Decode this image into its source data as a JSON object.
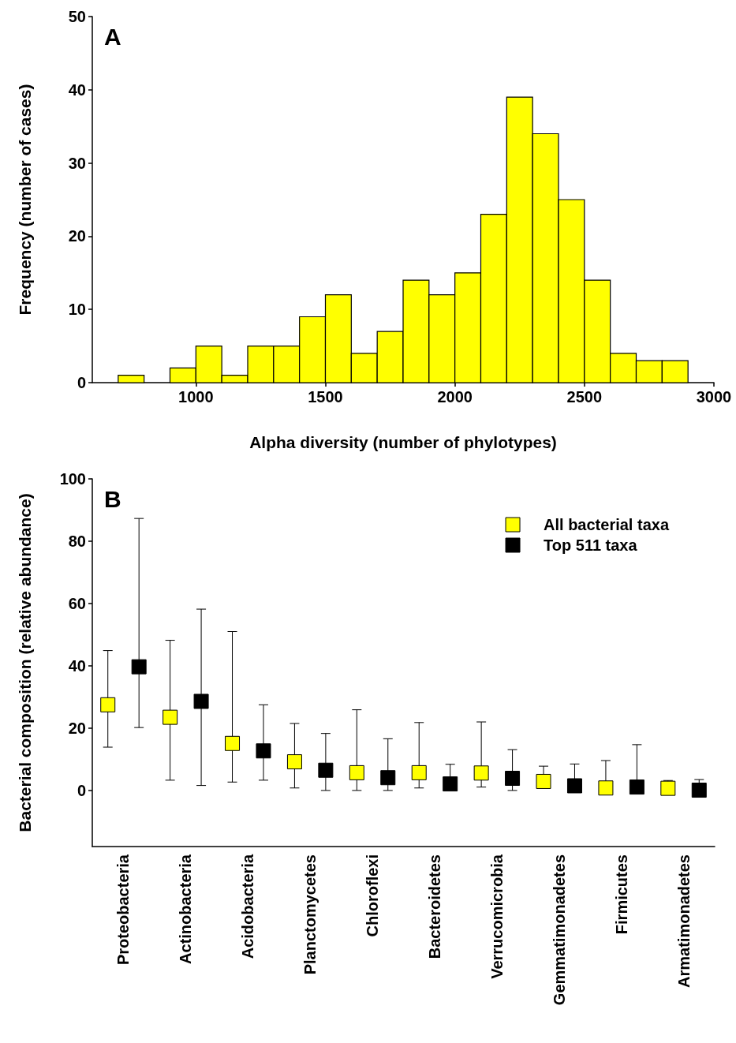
{
  "chart_data": [
    {
      "type": "histogram",
      "annotations": [
        "A"
      ],
      "xlabel": "Alpha diversity (number of phylotypes)",
      "ylabel": "Frequency (number of cases)",
      "color": "#ffff00",
      "bins": [
        700,
        800,
        900,
        1000,
        1100,
        1200,
        1300,
        1400,
        1500,
        1600,
        1700,
        1800,
        1900,
        2000,
        2100,
        2200,
        2300,
        2400,
        2500,
        2600,
        2700,
        2800,
        2900
      ],
      "values": [
        1,
        0,
        2,
        5,
        1,
        5,
        5,
        9,
        12,
        4,
        7,
        14,
        12,
        15,
        23,
        39,
        34,
        25,
        14,
        4,
        3,
        3
      ],
      "xlim": [
        600,
        3000
      ],
      "xticks": [
        1000,
        1500,
        2000,
        2500,
        3000
      ],
      "ylim": [
        0,
        50
      ],
      "yticks": [
        0,
        10,
        20,
        30,
        40,
        50
      ],
      "grid": false,
      "legend": false
    },
    {
      "type": "scatter",
      "annotations": [
        "B"
      ],
      "ylabel": "Bacterial composition (relative abundance)",
      "marker": "square",
      "legend": "top right",
      "grid": false,
      "categories": [
        "Proteobacteria",
        "Actinobacteria",
        "Acidobacteria",
        "Planctomycetes",
        "Chloroflexi",
        "Bacteroidetes",
        "Verrucomicrobia",
        "Gemmatimonadetes",
        "Firmicutes",
        "Armatimonadetes"
      ],
      "ylim": [
        -18,
        100
      ],
      "yticks": [
        0,
        20,
        40,
        60,
        80,
        100
      ],
      "series": [
        {
          "name": "All bacterial taxa",
          "color": "#ffff00",
          "values": [
            27.5,
            23.5,
            15.1,
            9.2,
            5.7,
            5.7,
            5.6,
            2.9,
            0.8,
            0.7
          ],
          "errors": [
            [
              13.9,
              44.9
            ],
            [
              3.3,
              48.2
            ],
            [
              2.7,
              51
            ],
            [
              0.8,
              21.5
            ],
            [
              0,
              25.9
            ],
            [
              0.8,
              21.8
            ],
            [
              1.1,
              22
            ],
            [
              2.9,
              7.8
            ],
            [
              0.8,
              9.6
            ],
            [
              0.7,
              3.2
            ]
          ]
        },
        {
          "name": "Top 511 taxa",
          "color": "#000000",
          "values": [
            39.7,
            28.6,
            12.7,
            6.5,
            4.1,
            2.1,
            3.9,
            1.5,
            1.1,
            0.1
          ],
          "errors": [
            [
              20.2,
              87.3
            ],
            [
              1.6,
              58.2
            ],
            [
              3.3,
              27.5
            ],
            [
              0,
              18.3
            ],
            [
              0,
              16.6
            ],
            [
              2.1,
              8.4
            ],
            [
              0,
              13.1
            ],
            [
              1.5,
              8.5
            ],
            [
              1.1,
              14.7
            ],
            [
              0.1,
              3.5
            ]
          ]
        }
      ]
    }
  ]
}
